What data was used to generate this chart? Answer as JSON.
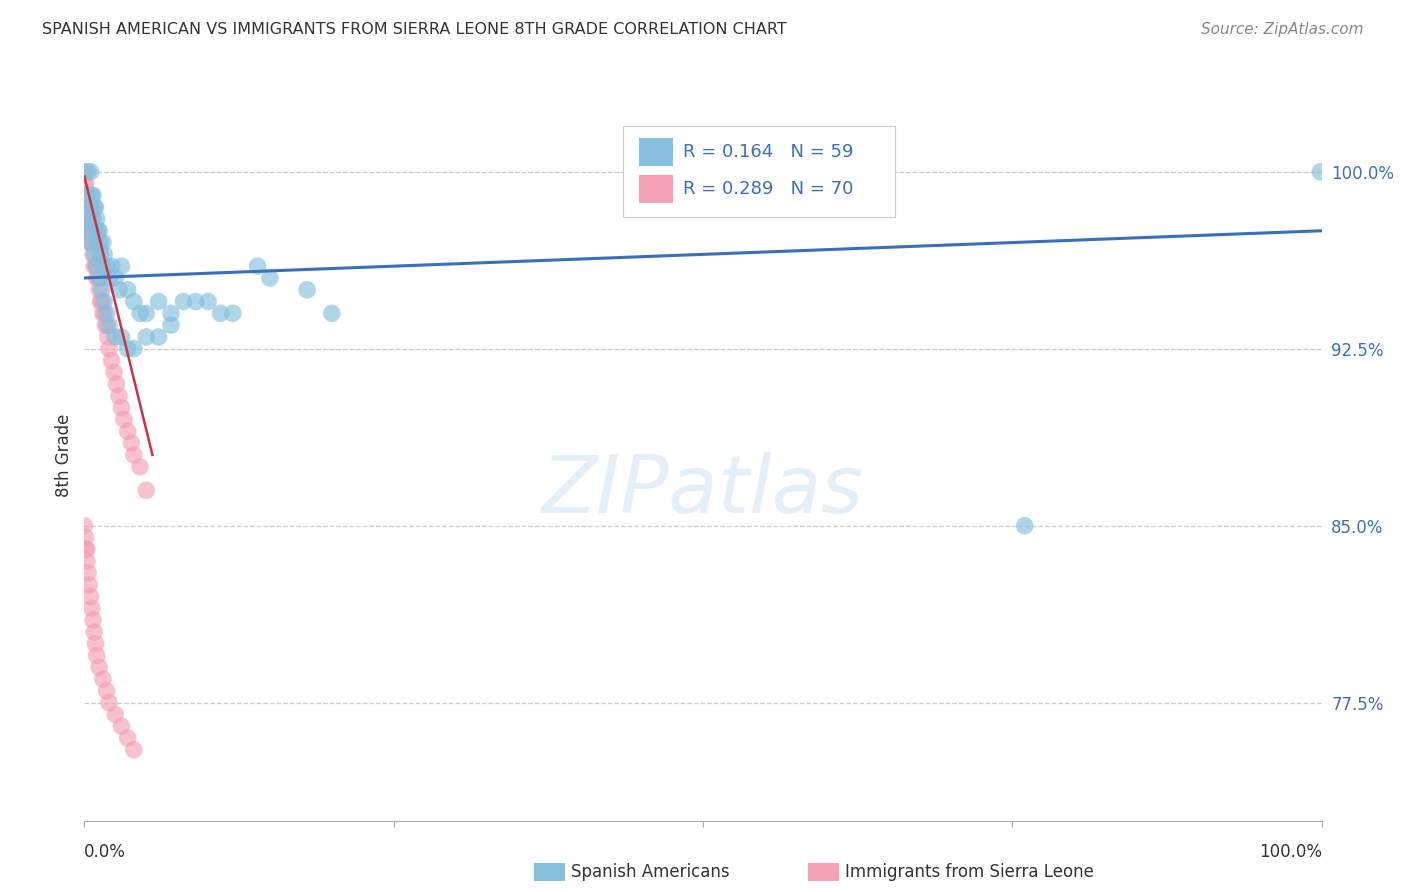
{
  "title": "SPANISH AMERICAN VS IMMIGRANTS FROM SIERRA LEONE 8TH GRADE CORRELATION CHART",
  "source": "Source: ZipAtlas.com",
  "ylabel_label": "8th Grade",
  "xmin": 0.0,
  "xmax": 1.0,
  "ymin": 0.725,
  "ymax": 1.035,
  "yticks": [
    0.775,
    0.85,
    0.925,
    1.0
  ],
  "ytick_labels": [
    "77.5%",
    "85.0%",
    "92.5%",
    "100.0%"
  ],
  "hlines": [
    0.775,
    0.85,
    0.925,
    1.0
  ],
  "legend_r1": "R = 0.164",
  "legend_n1": "N = 59",
  "legend_r2": "R = 0.289",
  "legend_n2": "N = 70",
  "blue_color": "#85bfdd",
  "pink_color": "#f4a0b5",
  "trend_blue": "#3a6fbe",
  "trend_pink": "#cc3344",
  "blue_scatter_x": [
    0.003,
    0.005,
    0.006,
    0.007,
    0.008,
    0.009,
    0.01,
    0.011,
    0.012,
    0.013,
    0.015,
    0.016,
    0.018,
    0.02,
    0.022,
    0.025,
    0.028,
    0.03,
    0.035,
    0.04,
    0.045,
    0.05,
    0.06,
    0.07,
    0.08,
    0.1,
    0.12,
    0.15,
    0.18,
    0.2,
    0.002,
    0.004,
    0.006,
    0.008,
    0.01,
    0.012,
    0.014,
    0.016,
    0.018,
    0.02,
    0.025,
    0.03,
    0.035,
    0.04,
    0.05,
    0.06,
    0.07,
    0.09,
    0.11,
    0.14,
    0.003,
    0.005,
    0.007,
    0.009,
    0.011,
    0.013,
    0.015,
    0.999,
    0.76
  ],
  "blue_scatter_y": [
    1.0,
    1.0,
    0.99,
    0.99,
    0.985,
    0.985,
    0.98,
    0.975,
    0.975,
    0.97,
    0.97,
    0.965,
    0.96,
    0.955,
    0.96,
    0.955,
    0.95,
    0.96,
    0.95,
    0.945,
    0.94,
    0.94,
    0.945,
    0.94,
    0.945,
    0.945,
    0.94,
    0.955,
    0.95,
    0.94,
    0.98,
    0.975,
    0.97,
    0.965,
    0.96,
    0.955,
    0.95,
    0.945,
    0.94,
    0.935,
    0.93,
    0.93,
    0.925,
    0.925,
    0.93,
    0.93,
    0.935,
    0.945,
    0.94,
    0.96,
    0.99,
    0.985,
    0.98,
    0.975,
    0.97,
    0.965,
    0.96,
    1.0,
    0.85
  ],
  "pink_scatter_x": [
    0.0,
    0.0,
    0.0,
    0.0,
    0.001,
    0.001,
    0.001,
    0.001,
    0.001,
    0.002,
    0.002,
    0.002,
    0.003,
    0.003,
    0.003,
    0.004,
    0.004,
    0.005,
    0.005,
    0.005,
    0.006,
    0.006,
    0.007,
    0.007,
    0.008,
    0.009,
    0.01,
    0.01,
    0.011,
    0.012,
    0.013,
    0.014,
    0.015,
    0.016,
    0.017,
    0.018,
    0.019,
    0.02,
    0.022,
    0.024,
    0.026,
    0.028,
    0.03,
    0.032,
    0.035,
    0.038,
    0.04,
    0.045,
    0.05,
    0.0,
    0.001,
    0.001,
    0.002,
    0.002,
    0.003,
    0.004,
    0.005,
    0.006,
    0.007,
    0.008,
    0.009,
    0.01,
    0.012,
    0.015,
    0.018,
    0.02,
    0.025,
    0.03,
    0.035,
    0.04
  ],
  "pink_scatter_y": [
    1.0,
    0.995,
    0.99,
    0.985,
    1.0,
    0.995,
    0.99,
    0.985,
    0.98,
    0.99,
    0.985,
    0.98,
    0.985,
    0.98,
    0.975,
    0.975,
    0.97,
    0.985,
    0.98,
    0.975,
    0.975,
    0.97,
    0.97,
    0.965,
    0.96,
    0.96,
    0.955,
    0.96,
    0.955,
    0.95,
    0.945,
    0.945,
    0.94,
    0.94,
    0.935,
    0.935,
    0.93,
    0.925,
    0.92,
    0.915,
    0.91,
    0.905,
    0.9,
    0.895,
    0.89,
    0.885,
    0.88,
    0.875,
    0.865,
    0.85,
    0.845,
    0.84,
    0.84,
    0.835,
    0.83,
    0.825,
    0.82,
    0.815,
    0.81,
    0.805,
    0.8,
    0.795,
    0.79,
    0.785,
    0.78,
    0.775,
    0.77,
    0.765,
    0.76,
    0.755
  ]
}
